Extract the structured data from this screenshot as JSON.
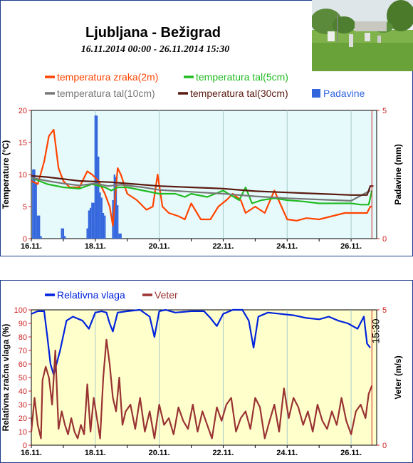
{
  "header": {
    "station": "Ljubljana - Bežigrad",
    "period": "16.11.2014 00:00 - 26.11.2014 15:30"
  },
  "photo": {
    "name": "station-photo"
  },
  "chart_data": [
    {
      "type": "line",
      "title": "",
      "x_ticks": [
        "16.11.",
        "18.11.",
        "20.11.",
        "22.11.",
        "24.11.",
        "26.11."
      ],
      "ylabel": "Temperature (°C)",
      "ylim": [
        0,
        20
      ],
      "y_ticks": [
        0,
        5,
        10,
        15,
        20
      ],
      "y2label": "Padavine (mm)",
      "y2lim": [
        0,
        5
      ],
      "y2_ticks": [
        0,
        5
      ],
      "background": "#e6fafc",
      "legend": [
        {
          "name": "temperatura zraka(2m)",
          "color": "#ff4400",
          "kind": "line"
        },
        {
          "name": "temperatura tal(5cm)",
          "color": "#22bb22",
          "kind": "line"
        },
        {
          "name": "temperatura tal(10cm)",
          "color": "#777777",
          "kind": "line"
        },
        {
          "name": "temperatura tal(30cm)",
          "color": "#5a1a10",
          "kind": "line"
        },
        {
          "name": "Padavine",
          "color": "#3366dd",
          "kind": "bar"
        }
      ],
      "series": [
        {
          "name": "temperatura zraka(2m)",
          "color": "#ff4400",
          "x": [
            16.0,
            16.2,
            16.4,
            16.55,
            16.7,
            16.85,
            17.0,
            17.2,
            17.5,
            17.75,
            17.9,
            18.1,
            18.3,
            18.45,
            18.55,
            18.7,
            18.8,
            19.0,
            19.3,
            19.6,
            19.8,
            19.95,
            20.1,
            20.3,
            20.6,
            20.8,
            21.0,
            21.3,
            21.6,
            21.85,
            22.1,
            22.3,
            22.55,
            22.7,
            22.85,
            23.0,
            23.3,
            23.6,
            24.0,
            24.3,
            24.6,
            25.0,
            25.4,
            25.8,
            26.2,
            26.5,
            26.6,
            26.65
          ],
          "y": [
            9,
            8.5,
            12,
            16,
            17,
            11,
            9,
            8,
            8,
            10.5,
            10,
            9,
            7,
            5,
            2,
            11,
            10,
            7,
            6,
            4.5,
            5,
            10,
            5,
            4,
            3.5,
            3,
            5.5,
            3,
            3,
            5,
            6,
            7,
            6,
            4,
            4.5,
            5,
            4,
            7.5,
            3,
            2.8,
            3.2,
            3,
            3.5,
            4,
            4,
            4,
            5,
            5
          ]
        },
        {
          "name": "temperatura tal(5cm)",
          "color": "#22bb22",
          "x": [
            16.0,
            16.5,
            17.0,
            17.5,
            17.9,
            18.3,
            18.5,
            18.7,
            19.0,
            19.5,
            20.0,
            20.5,
            20.8,
            21.0,
            21.5,
            22.0,
            22.5,
            22.7,
            22.9,
            23.2,
            23.6,
            24.0,
            24.5,
            25.0,
            25.5,
            26.0,
            26.3,
            26.55,
            26.65
          ],
          "y": [
            9.5,
            8.5,
            8,
            7.8,
            8.5,
            8,
            7.5,
            8,
            8,
            7.5,
            7,
            7,
            6.5,
            7,
            6.5,
            7.5,
            6,
            8,
            5.5,
            6,
            6.3,
            6,
            5.8,
            5.5,
            5.5,
            5.5,
            5.3,
            5.3,
            7.5
          ]
        },
        {
          "name": "temperatura tal(10cm)",
          "color": "#777777",
          "x": [
            16.0,
            16.5,
            17.0,
            17.5,
            18.0,
            18.4,
            18.8,
            19.5,
            20.0,
            21.0,
            22.0,
            23.0,
            24.0,
            25.0,
            26.0,
            26.6
          ],
          "y": [
            9.5,
            9,
            8.6,
            8.3,
            8.6,
            8.2,
            8.4,
            8,
            7.6,
            7.3,
            7,
            6.6,
            6.3,
            6.1,
            5.9,
            7.5
          ]
        },
        {
          "name": "temperatura tal(30cm)",
          "color": "#5a1a10",
          "x": [
            16.0,
            16.5,
            17.0,
            17.5,
            18.0,
            18.5,
            19.0,
            19.5,
            20.0,
            20.5,
            21.0,
            21.5,
            22.0,
            22.5,
            23.0,
            23.5,
            24.0,
            24.5,
            25.0,
            25.5,
            26.0,
            26.5,
            26.6,
            26.7
          ],
          "y": [
            9.8,
            9.6,
            9.3,
            9,
            8.9,
            8.8,
            8.6,
            8.4,
            8.2,
            8.1,
            8,
            7.9,
            7.8,
            7.6,
            7.4,
            7.3,
            7.2,
            7.1,
            7,
            6.9,
            6.8,
            6.8,
            8.2,
            8.2
          ]
        }
      ],
      "precipitation": {
        "name": "Padavine",
        "color": "#3366dd",
        "x": [
          16.05,
          16.1,
          16.15,
          16.2,
          16.25,
          16.3,
          16.95,
          17.0,
          17.05,
          17.75,
          17.8,
          17.85,
          17.9,
          17.95,
          18.0,
          18.05,
          18.1,
          18.15,
          18.2,
          18.25,
          18.3,
          18.55,
          18.6,
          18.65,
          18.7,
          18.75,
          18.8
        ],
        "y": [
          2.7,
          2.7,
          2.2,
          0.9,
          0.9,
          0.1,
          0.4,
          0.4,
          0.1,
          0.4,
          1.1,
          1.2,
          1.4,
          1.4,
          4.8,
          4.8,
          3.2,
          1.8,
          1.6,
          1.0,
          0.9,
          1.5,
          2.5,
          2.4,
          1.3,
          0.2,
          0.2
        ]
      }
    },
    {
      "type": "line",
      "title": "",
      "x_ticks": [
        "16.11.",
        "18.11.",
        "20.11.",
        "22.11.",
        "24.11.",
        "26.11."
      ],
      "ylabel": "Relativna zračna vlaga (%)",
      "ylim": [
        0,
        100
      ],
      "y_ticks": [
        0,
        10,
        20,
        30,
        40,
        50,
        60,
        70,
        80,
        90,
        100
      ],
      "y2label": "Veter (m/s)",
      "y2lim": [
        0,
        5
      ],
      "y2_ticks": [
        0,
        5
      ],
      "background": "#ffffcc",
      "time_label": "15:30",
      "legend": [
        {
          "name": "Relativna vlaga",
          "color": "#0022dd",
          "kind": "line"
        },
        {
          "name": "Veter",
          "color": "#993333",
          "kind": "line"
        }
      ],
      "series": [
        {
          "name": "Relativna vlaga",
          "color": "#0022dd",
          "x": [
            16.0,
            16.2,
            16.4,
            16.5,
            16.6,
            16.7,
            16.9,
            17.1,
            17.3,
            17.6,
            17.8,
            18.0,
            18.2,
            18.35,
            18.45,
            18.55,
            18.7,
            19.0,
            19.4,
            19.7,
            19.85,
            20.0,
            20.2,
            20.5,
            21.0,
            21.4,
            21.6,
            21.8,
            22.0,
            22.3,
            22.6,
            22.8,
            22.95,
            23.1,
            23.4,
            23.8,
            24.2,
            24.6,
            25.0,
            25.3,
            25.6,
            25.9,
            26.2,
            26.4,
            26.5,
            26.6
          ],
          "y": [
            97,
            99,
            99,
            80,
            60,
            52,
            70,
            92,
            95,
            92,
            86,
            98,
            99,
            98,
            90,
            84,
            98,
            99,
            100,
            95,
            80,
            99,
            100,
            98,
            99,
            99,
            94,
            88,
            97,
            100,
            100,
            92,
            72,
            95,
            98,
            97,
            96,
            94,
            93,
            95,
            92,
            90,
            86,
            95,
            75,
            72
          ]
        },
        {
          "name": "Veter",
          "color": "#993333",
          "x": [
            16.0,
            16.1,
            16.2,
            16.3,
            16.35,
            16.45,
            16.55,
            16.65,
            16.75,
            16.85,
            16.95,
            17.05,
            17.15,
            17.25,
            17.35,
            17.45,
            17.55,
            17.65,
            17.75,
            17.85,
            17.95,
            18.05,
            18.15,
            18.25,
            18.35,
            18.45,
            18.55,
            18.65,
            18.75,
            18.85,
            18.95,
            19.1,
            19.25,
            19.4,
            19.55,
            19.7,
            19.85,
            20.0,
            20.15,
            20.3,
            20.45,
            20.6,
            20.75,
            20.9,
            21.05,
            21.2,
            21.35,
            21.5,
            21.65,
            21.8,
            21.95,
            22.1,
            22.25,
            22.4,
            22.55,
            22.7,
            22.85,
            23.0,
            23.15,
            23.3,
            23.45,
            23.6,
            23.75,
            23.9,
            24.05,
            24.2,
            24.35,
            24.5,
            24.65,
            24.8,
            24.95,
            25.1,
            25.25,
            25.4,
            25.55,
            25.7,
            25.85,
            26.0,
            26.15,
            26.3,
            26.45,
            26.55,
            26.65
          ],
          "y": [
            10,
            35,
            15,
            5,
            48,
            58,
            50,
            30,
            70,
            12,
            25,
            15,
            8,
            20,
            10,
            5,
            15,
            8,
            45,
            10,
            35,
            20,
            5,
            50,
            78,
            60,
            35,
            25,
            50,
            15,
            25,
            30,
            12,
            35,
            10,
            25,
            5,
            30,
            15,
            20,
            8,
            28,
            18,
            12,
            30,
            10,
            25,
            15,
            5,
            28,
            18,
            30,
            35,
            10,
            20,
            25,
            12,
            35,
            28,
            5,
            18,
            30,
            10,
            42,
            20,
            35,
            28,
            15,
            25,
            10,
            30,
            18,
            12,
            25,
            15,
            35,
            18,
            8,
            25,
            30,
            20,
            38,
            44
          ]
        }
      ]
    }
  ]
}
